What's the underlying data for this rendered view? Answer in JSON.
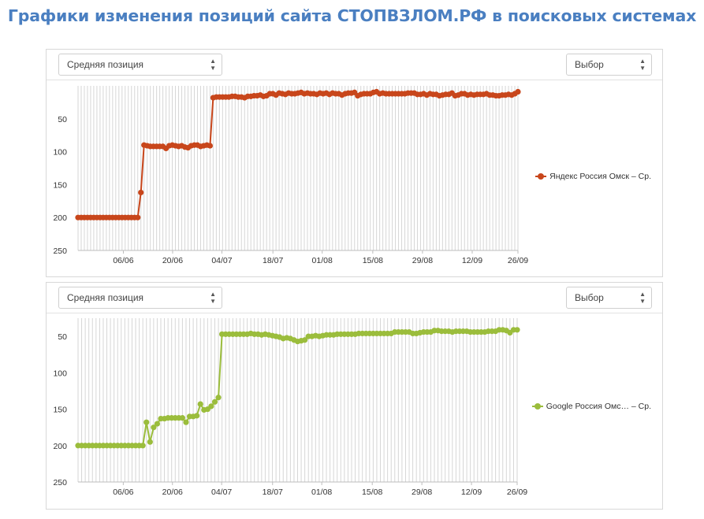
{
  "page": {
    "title": "Графики изменения позиций сайта СТОПВЗЛОМ.РФ в поисковых системах"
  },
  "chart_data": [
    {
      "type": "line",
      "title": "Средняя позиция",
      "selector_metric": "Средняя позиция",
      "selector_choice": "Выбор",
      "ylim": [
        0,
        250
      ],
      "y_reversed": true,
      "y_ticks": [
        50,
        100,
        150,
        200,
        250
      ],
      "x_tick_labels": [
        "06/06",
        "20/06",
        "04/07",
        "18/07",
        "01/08",
        "15/08",
        "29/08",
        "12/09",
        "26/09"
      ],
      "legend": "Яндекс Россия Омск – Ср.",
      "series": [
        {
          "name": "Яндекс Россия Омск – Ср.",
          "color": "#c8461b",
          "values": [
            200,
            200,
            200,
            200,
            200,
            200,
            200,
            200,
            200,
            200,
            200,
            200,
            200,
            200,
            200,
            200,
            200,
            200,
            200,
            200,
            162,
            90,
            91,
            92,
            92,
            92,
            92,
            92,
            95,
            91,
            90,
            91,
            92,
            91,
            93,
            94,
            91,
            90,
            90,
            92,
            91,
            90,
            91,
            18,
            17,
            17,
            17,
            17,
            17,
            16,
            16,
            17,
            17,
            18,
            16,
            16,
            15,
            15,
            14,
            16,
            15,
            12,
            12,
            14,
            11,
            12,
            13,
            11,
            12,
            12,
            11,
            10,
            12,
            11,
            12,
            12,
            13,
            11,
            12,
            11,
            13,
            11,
            12,
            12,
            14,
            12,
            11,
            11,
            10,
            15,
            13,
            12,
            12,
            12,
            10,
            9,
            12,
            11,
            12,
            12,
            12,
            12,
            12,
            12,
            12,
            11,
            11,
            11,
            13,
            13,
            12,
            14,
            12,
            13,
            13,
            15,
            14,
            13,
            13,
            11,
            15,
            14,
            12,
            12,
            14,
            13,
            14,
            13,
            13,
            13,
            12,
            14,
            14,
            15,
            15,
            14,
            14,
            13,
            14,
            12,
            9
          ]
        }
      ]
    },
    {
      "type": "line",
      "title": "Средняя позиция",
      "selector_metric": "Средняя позиция",
      "selector_choice": "Выбор",
      "ylim": [
        25,
        250
      ],
      "y_reversed": true,
      "y_ticks": [
        50,
        100,
        150,
        200,
        250
      ],
      "x_tick_labels": [
        "06/06",
        "20/06",
        "04/07",
        "18/07",
        "01/08",
        "15/08",
        "29/08",
        "12/09",
        "26/09"
      ],
      "legend": "Google Россия Омс… – Ср.",
      "series": [
        {
          "name": "Google Россия Омс… – Ср.",
          "color": "#9bbd3c",
          "values": [
            200,
            200,
            200,
            200,
            200,
            200,
            200,
            200,
            200,
            200,
            200,
            200,
            200,
            200,
            200,
            200,
            200,
            200,
            200,
            168,
            195,
            175,
            170,
            163,
            163,
            162,
            162,
            162,
            162,
            162,
            168,
            160,
            160,
            159,
            143,
            151,
            150,
            146,
            140,
            134,
            47,
            47,
            47,
            47,
            47,
            47,
            47,
            47,
            46,
            47,
            47,
            48,
            47,
            48,
            49,
            50,
            51,
            53,
            52,
            53,
            55,
            57,
            56,
            55,
            50,
            50,
            49,
            50,
            49,
            48,
            48,
            48,
            47,
            47,
            47,
            47,
            47,
            47,
            46,
            46,
            46,
            46,
            46,
            46,
            46,
            46,
            46,
            46,
            44,
            44,
            44,
            44,
            44,
            46,
            46,
            45,
            44,
            44,
            44,
            42,
            42,
            43,
            43,
            43,
            44,
            43,
            43,
            43,
            43,
            44,
            44,
            44,
            44,
            44,
            43,
            43,
            43,
            41,
            41,
            42,
            45,
            41,
            41
          ]
        }
      ]
    }
  ]
}
